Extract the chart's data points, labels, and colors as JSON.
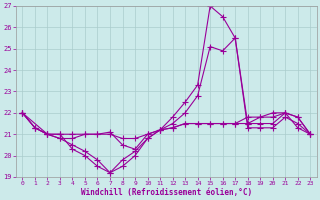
{
  "xlabel": "Windchill (Refroidissement éolien,°C)",
  "bg_color": "#cceaea",
  "line_color": "#990099",
  "grid_color": "#aacccc",
  "xlim_min": -0.5,
  "xlim_max": 23.5,
  "ylim_min": 19,
  "ylim_max": 27,
  "yticks": [
    19,
    20,
    21,
    22,
    23,
    24,
    25,
    26,
    27
  ],
  "xticks": [
    0,
    1,
    2,
    3,
    4,
    5,
    6,
    7,
    8,
    9,
    10,
    11,
    12,
    13,
    14,
    15,
    16,
    17,
    18,
    19,
    20,
    21,
    22,
    23
  ],
  "lineA_x": [
    0,
    1,
    2,
    3,
    4,
    5,
    6,
    7,
    8,
    9,
    10,
    11,
    12,
    13,
    14,
    15,
    16,
    17,
    18,
    19,
    20,
    21,
    22,
    23
  ],
  "lineA_y": [
    22.0,
    21.3,
    21.0,
    20.8,
    20.5,
    20.2,
    19.8,
    19.2,
    19.5,
    20.0,
    20.8,
    21.2,
    21.8,
    22.5,
    23.3,
    27.0,
    26.5,
    25.5,
    21.3,
    21.3,
    21.3,
    21.8,
    21.5,
    21.0
  ],
  "lineB_x": [
    0,
    2,
    3,
    4,
    5,
    6,
    7,
    8,
    9,
    10,
    11,
    12,
    13,
    14,
    15,
    16,
    17,
    18,
    19,
    20,
    21,
    22,
    23
  ],
  "lineB_y": [
    22.0,
    21.0,
    20.8,
    20.8,
    21.0,
    21.0,
    21.1,
    20.5,
    20.3,
    21.0,
    21.2,
    21.5,
    22.0,
    22.8,
    25.1,
    24.9,
    25.5,
    21.5,
    21.5,
    21.5,
    22.0,
    21.8,
    21.0
  ],
  "lineC_x": [
    0,
    1,
    2,
    3,
    4,
    5,
    6,
    7,
    8,
    9,
    10,
    11,
    12,
    13,
    14,
    15,
    16,
    17,
    18,
    19,
    20,
    21,
    22,
    23
  ],
  "lineC_y": [
    22.0,
    21.3,
    21.0,
    21.0,
    21.0,
    21.0,
    21.0,
    21.0,
    20.8,
    20.8,
    21.0,
    21.2,
    21.3,
    21.5,
    21.5,
    21.5,
    21.5,
    21.5,
    21.8,
    21.8,
    22.0,
    22.0,
    21.8,
    21.0
  ],
  "lineD_x": [
    0,
    1,
    2,
    3,
    4,
    5,
    6,
    7,
    8,
    9,
    10,
    11,
    12,
    13,
    14,
    15,
    16,
    17,
    18,
    19,
    20,
    21,
    22,
    23
  ],
  "lineD_y": [
    22.0,
    21.3,
    21.0,
    21.0,
    20.3,
    20.0,
    19.5,
    19.2,
    19.8,
    20.2,
    20.8,
    21.2,
    21.3,
    21.5,
    21.5,
    21.5,
    21.5,
    21.5,
    21.5,
    21.8,
    21.8,
    22.0,
    21.3,
    21.0
  ],
  "marker_size": 2.0,
  "line_width": 0.8,
  "tick_fontsize": 4.5,
  "xlabel_fontsize": 5.5
}
